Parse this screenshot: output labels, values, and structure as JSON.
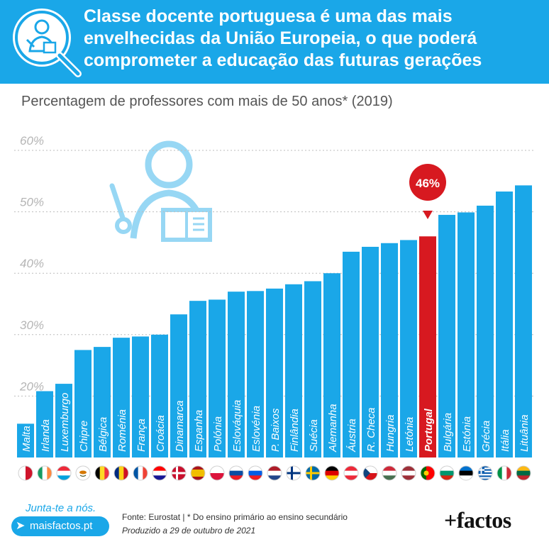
{
  "header": {
    "title": "Classe docente portuguesa é uma das mais envelhecidas da União Europeia, o que poderá comprometer a educação das futuras gerações",
    "icon": "teacher-magnifier-icon",
    "color": "#1aa7e8"
  },
  "chart_data": {
    "type": "bar",
    "title": "Percentagem de professores com mais de 50 anos* (2019)",
    "categories": [
      "Malta",
      "Irlanda",
      "Luxemburgo",
      "Chipre",
      "Bélgica",
      "Roménia",
      "França",
      "Croácia",
      "Dinamarca",
      "Espanha",
      "Polónia",
      "Eslováquia",
      "Eslovénia",
      "P. Baixos",
      "Finlândia",
      "Suécia",
      "Alemanha",
      "Áustria",
      "R. Checa",
      "Hungria",
      "Letónia",
      "Portugal",
      "Bulgária",
      "Estónia",
      "Grécia",
      "Itália",
      "Lituânia"
    ],
    "values": [
      15.5,
      20.8,
      22.0,
      27.5,
      28.0,
      29.5,
      29.7,
      30.0,
      33.3,
      35.5,
      35.7,
      37.0,
      37.1,
      37.5,
      38.2,
      38.7,
      40.0,
      43.5,
      44.3,
      44.9,
      45.4,
      46,
      49.5,
      49.9,
      51.0,
      53.3,
      54.3
    ],
    "ylim": [
      10,
      60
    ],
    "y_ticks": [
      "20%",
      "30%",
      "40%",
      "50%",
      "60%"
    ],
    "y_tick_values": [
      20,
      30,
      40,
      50,
      60
    ],
    "grid": true,
    "highlight": {
      "category": "Portugal",
      "label": "46%",
      "color": "#d71920"
    },
    "bar_color": "#1aa7e8",
    "flags": [
      "malta-flag",
      "ireland-flag",
      "luxembourg-flag",
      "cyprus-flag",
      "belgium-flag",
      "romania-flag",
      "france-flag",
      "croatia-flag",
      "denmark-flag",
      "spain-flag",
      "poland-flag",
      "slovakia-flag",
      "slovenia-flag",
      "netherlands-flag",
      "finland-flag",
      "sweden-flag",
      "germany-flag",
      "austria-flag",
      "czechia-flag",
      "hungary-flag",
      "latvia-flag",
      "portugal-flag",
      "bulgaria-flag",
      "estonia-flag",
      "greece-flag",
      "italy-flag",
      "lithuania-flag"
    ]
  },
  "footer": {
    "join": "Junta-te a nós.",
    "site": "maisfactos.pt",
    "source": "Fonte: Eurostat | * Do ensino primário ao ensino secundário",
    "produced": "Produzido a 29 de outubro de 2021",
    "brand": "+factos"
  }
}
